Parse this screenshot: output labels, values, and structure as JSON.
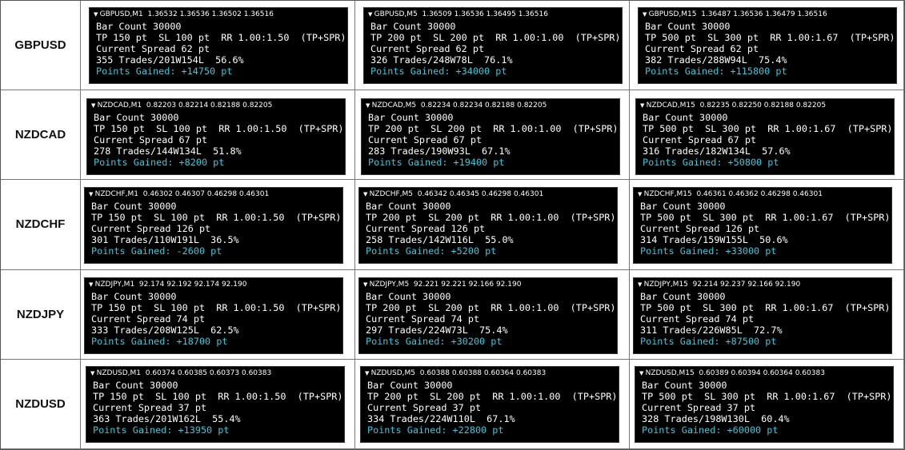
{
  "rows": [
    {
      "pair": "GBPUSD",
      "cells": [
        {
          "header": "GBPUSD,M1  1.36532 1.36536 1.36502 1.36516",
          "lines": [
            "Bar Count 30000",
            "TP 150 pt  SL 100 pt  RR 1.00:1.50  (TP+SPR)",
            "Current Spread 62 pt",
            "355 Trades/201W154L  56.6%"
          ],
          "points": "Points Gained: +14750 pt"
        },
        {
          "header": "GBPUSD,M5  1.36509 1.36536 1.36495 1.36516",
          "lines": [
            "Bar Count 30000",
            "TP 200 pt  SL 200 pt  RR 1.00:1.00  (TP+SPR)",
            "Current Spread 62 pt",
            "326 Trades/248W78L  76.1%"
          ],
          "points": "Points Gained: +34000 pt"
        },
        {
          "header": "GBPUSD,M15  1.36487 1.36536 1.36479 1.36516",
          "lines": [
            "Bar Count 30000",
            "TP 500 pt  SL 300 pt  RR 1.00:1.67  (TP+SPR)",
            "Current Spread 62 pt",
            "382 Trades/288W94L  75.4%"
          ],
          "points": "Points Gained: +115800 pt"
        }
      ]
    },
    {
      "pair": "NZDCAD",
      "cells": [
        {
          "header": "NZDCAD,M1  0.82203 0.82214 0.82188 0.82205",
          "lines": [
            "Bar Count 30000",
            "TP 150 pt  SL 100 pt  RR 1.00:1.50  (TP+SPR)",
            "Current Spread 67 pt",
            "278 Trades/144W134L  51.8%"
          ],
          "points": "Points Gained: +8200 pt"
        },
        {
          "header": "NZDCAD,M5  0.82234 0.82234 0.82188 0.82205",
          "lines": [
            "Bar Count 30000",
            "TP 200 pt  SL 200 pt  RR 1.00:1.00  (TP+SPR)",
            "Current Spread 67 pt",
            "283 Trades/190W93L  67.1%"
          ],
          "points": "Points Gained: +19400 pt"
        },
        {
          "header": "NZDCAD,M15  0.82235 0.82250 0.82188 0.82205",
          "lines": [
            "Bar Count 30000",
            "TP 500 pt  SL 300 pt  RR 1.00:1.67  (TP+SPR)",
            "Current Spread 67 pt",
            "316 Trades/182W134L  57.6%"
          ],
          "points": "Points Gained: +50800 pt"
        }
      ]
    },
    {
      "pair": "NZDCHF",
      "cells": [
        {
          "header": "NZDCHF,M1  0.46302 0.46307 0.46298 0.46301",
          "lines": [
            "Bar Count 30000",
            "TP 150 pt  SL 100 pt  RR 1.00:1.50  (TP+SPR)",
            "Current Spread 126 pt",
            "301 Trades/110W191L  36.5%"
          ],
          "points": "Points Gained: -2600 pt"
        },
        {
          "header": "NZDCHF,M5  0.46342 0.46345 0.46298 0.46301",
          "lines": [
            "Bar Count 30000",
            "TP 200 pt  SL 200 pt  RR 1.00:1.00  (TP+SPR)",
            "Current Spread 126 pt",
            "258 Trades/142W116L  55.0%"
          ],
          "points": "Points Gained: +5200 pt"
        },
        {
          "header": "NZDCHF,M15  0.46361 0.46362 0.46298 0.46301",
          "lines": [
            "Bar Count 30000",
            "TP 500 pt  SL 300 pt  RR 1.00:1.67  (TP+SPR)",
            "Current Spread 126 pt",
            "314 Trades/159W155L  50.6%"
          ],
          "points": "Points Gained: +33000 pt"
        }
      ]
    },
    {
      "pair": "NZDJPY",
      "cells": [
        {
          "header": "NZDJPY,M1  92.174 92.192 92.174 92.190",
          "lines": [
            "Bar Count 30000",
            "TP 150 pt  SL 100 pt  RR 1.00:1.50  (TP+SPR)",
            "Current Spread 74 pt",
            "333 Trades/208W125L  62.5%"
          ],
          "points": "Points Gained: +18700 pt"
        },
        {
          "header": "NZDJPY,M5  92.221 92.221 92.166 92.190",
          "lines": [
            "Bar Count 30000",
            "TP 200 pt  SL 200 pt  RR 1.00:1.00  (TP+SPR)",
            "Current Spread 74 pt",
            "297 Trades/224W73L  75.4%"
          ],
          "points": "Points Gained: +30200 pt"
        },
        {
          "header": "NZDJPY,M15  92.214 92.237 92.166 92.190",
          "lines": [
            "Bar Count 30000",
            "TP 500 pt  SL 300 pt  RR 1.00:1.67  (TP+SPR)",
            "Current Spread 74 pt",
            "311 Trades/226W85L  72.7%"
          ],
          "points": "Points Gained: +87500 pt"
        }
      ]
    },
    {
      "pair": "NZDUSD",
      "cells": [
        {
          "header": "NZDUSD,M1  0.60374 0.60385 0.60373 0.60383",
          "lines": [
            "Bar Count 30000",
            "TP 150 pt  SL 100 pt  RR 1.00:1.50  (TP+SPR)",
            "Current Spread 37 pt",
            "363 Trades/201W162L  55.4%"
          ],
          "points": "Points Gained: +13950 pt"
        },
        {
          "header": "NZDUSD,M5  0.60388 0.60388 0.60364 0.60383",
          "lines": [
            "Bar Count 30000",
            "TP 200 pt  SL 200 pt  RR 1.00:1.00  (TP+SPR)",
            "Current Spread 37 pt",
            "334 Trades/224W110L  67.1%"
          ],
          "points": "Points Gained: +22800 pt"
        },
        {
          "header": "NZDUSD,M15  0.60389 0.60394 0.60364 0.60383",
          "lines": [
            "Bar Count 30000",
            "TP 500 pt  SL 300 pt  RR 1.00:1.67  (TP+SPR)",
            "Current Spread 37 pt",
            "328 Trades/198W130L  60.4%"
          ],
          "points": "Points Gained: +60000 pt"
        }
      ]
    }
  ]
}
